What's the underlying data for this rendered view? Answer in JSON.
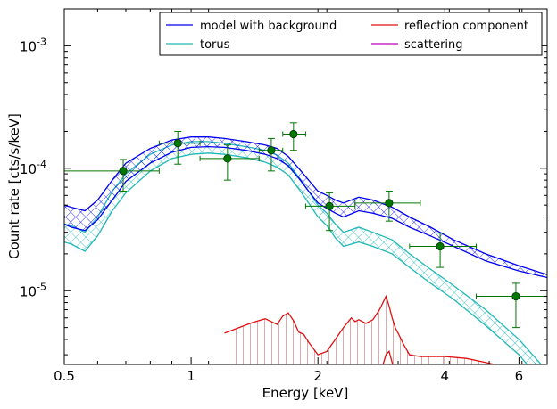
{
  "chart_data": {
    "type": "line",
    "xlabel": "Energy [keV]",
    "ylabel": "Count rate [cts/s/keV]",
    "xscale": "log",
    "yscale": "log",
    "xlim": [
      0.5,
      7.0
    ],
    "ylim": [
      2.5e-06,
      0.002
    ],
    "x_ticks": [
      {
        "value": 0.5,
        "label": "0.5"
      },
      {
        "value": 1,
        "label": "1"
      },
      {
        "value": 2,
        "label": "2"
      },
      {
        "value": 4,
        "label": "4"
      },
      {
        "value": 6,
        "label": "6"
      }
    ],
    "y_ticks": [
      {
        "value": 1e-05,
        "base": "10",
        "exp": "-5"
      },
      {
        "value": 0.0001,
        "base": "10",
        "exp": "-4"
      },
      {
        "value": 0.001,
        "base": "10",
        "exp": "-3"
      }
    ],
    "grid": false,
    "legend_position": "top-right",
    "legend": [
      {
        "name": "model with background",
        "color": "#0000ee"
      },
      {
        "name": "reflection component",
        "color": "#e01010"
      },
      {
        "name": "torus",
        "color": "#20b8b8"
      },
      {
        "name": "scattering",
        "color": "#bb00bb"
      }
    ],
    "series": [
      {
        "name": "model with background",
        "color": "#0000ee",
        "style": "hatched-band",
        "x": [
          0.5,
          0.52,
          0.56,
          0.6,
          0.65,
          0.7,
          0.8,
          0.9,
          1.0,
          1.1,
          1.2,
          1.35,
          1.5,
          1.6,
          1.7,
          1.8,
          1.9,
          2.0,
          2.1,
          2.2,
          2.3,
          2.5,
          2.7,
          3.0,
          3.3,
          3.7,
          4.2,
          5.0,
          6.0,
          7.0
        ],
        "upper": [
          5e-05,
          4.8e-05,
          4.5e-05,
          5.5e-05,
          8e-05,
          0.00011,
          0.000145,
          0.00017,
          0.00018,
          0.00018,
          0.000175,
          0.000165,
          0.000155,
          0.000145,
          0.000125,
          0.0001,
          8e-05,
          6.5e-05,
          6e-05,
          5.5e-05,
          5.2e-05,
          5.8e-05,
          5.5e-05,
          4.8e-05,
          4e-05,
          3.3e-05,
          2.6e-05,
          2e-05,
          1.6e-05,
          1.35e-05
        ],
        "lower": [
          3.5e-05,
          3.3e-05,
          3.1e-05,
          3.8e-05,
          5.5e-05,
          7.8e-05,
          0.00011,
          0.000135,
          0.000148,
          0.00015,
          0.000148,
          0.00014,
          0.00013,
          0.00012,
          0.000105,
          8.3e-05,
          6.5e-05,
          5.2e-05,
          4.7e-05,
          4.3e-05,
          4e-05,
          4.5e-05,
          4.3e-05,
          3.9e-05,
          3.3e-05,
          2.8e-05,
          2.3e-05,
          1.75e-05,
          1.45e-05,
          1.28e-05
        ]
      },
      {
        "name": "torus",
        "color": "#20b8b8",
        "style": "hatched-band",
        "x": [
          0.5,
          0.52,
          0.56,
          0.6,
          0.65,
          0.7,
          0.8,
          0.9,
          1.0,
          1.1,
          1.2,
          1.35,
          1.5,
          1.6,
          1.7,
          1.8,
          1.9,
          2.0,
          2.1,
          2.2,
          2.3,
          2.5,
          2.7,
          3.0,
          3.3,
          3.7,
          4.2,
          5.0,
          6.0,
          7.0
        ],
        "upper": [
          3.5e-05,
          3.4e-05,
          3e-05,
          4e-05,
          6.5e-05,
          9e-05,
          0.00013,
          0.000155,
          0.000165,
          0.000165,
          0.00016,
          0.00015,
          0.00014,
          0.000128,
          0.00011,
          8.5e-05,
          6.5e-05,
          5e-05,
          4.3e-05,
          3.5e-05,
          3e-05,
          3.3e-05,
          3e-05,
          2.6e-05,
          2e-05,
          1.5e-05,
          1.1e-05,
          7e-06,
          4e-06,
          2.2e-06
        ],
        "lower": [
          2.5e-05,
          2.4e-05,
          2.1e-05,
          2.8e-05,
          4.5e-05,
          6.3e-05,
          9.5e-05,
          0.00012,
          0.00013,
          0.000133,
          0.00013,
          0.000122,
          0.000112,
          0.000102,
          8.8e-05,
          6.8e-05,
          5.2e-05,
          4e-05,
          3.4e-05,
          2.7e-05,
          2.3e-05,
          2.5e-05,
          2.3e-05,
          2e-05,
          1.55e-05,
          1.15e-05,
          8.5e-06,
          5.2e-06,
          3e-06,
          1.6e-06
        ]
      },
      {
        "name": "reflection component",
        "color": "#e01010",
        "style": "hatched-band",
        "x": [
          1.2,
          1.3,
          1.4,
          1.5,
          1.55,
          1.6,
          1.65,
          1.7,
          1.75,
          1.8,
          1.85,
          1.9,
          2.0,
          2.1,
          2.2,
          2.3,
          2.4,
          2.45,
          2.5,
          2.6,
          2.7,
          2.8,
          2.9,
          2.95,
          3.0,
          3.05,
          3.1,
          3.2,
          3.3,
          3.5,
          4.0,
          4.5,
          5.0,
          5.5
        ],
        "upper": [
          4.5e-06,
          5e-06,
          5.5e-06,
          5.9e-06,
          5.6e-06,
          5.3e-06,
          6.2e-06,
          6.6e-06,
          5.7e-06,
          4.6e-06,
          4.4e-06,
          3.8e-06,
          3e-06,
          3.2e-06,
          4e-06,
          5e-06,
          6e-06,
          5.6e-06,
          5.8e-06,
          5.4e-06,
          5.8e-06,
          7e-06,
          9e-06,
          7.5e-06,
          6e-06,
          5e-06,
          4.5e-06,
          3.6e-06,
          3e-06,
          2.9e-06,
          2.9e-06,
          2.8e-06,
          2.6e-06,
          2.4e-06
        ],
        "lower": [
          2e-06,
          2e-06,
          2e-06,
          2e-06,
          2e-06,
          2e-06,
          2e-06,
          2e-06,
          2e-06,
          2e-06,
          2e-06,
          2e-06,
          2e-06,
          2e-06,
          2e-06,
          2e-06,
          2e-06,
          2e-06,
          2e-06,
          2e-06,
          2e-06,
          2e-06,
          3e-06,
          3.2e-06,
          2.6e-06,
          2e-06,
          2e-06,
          2e-06,
          2e-06,
          2e-06,
          2e-06,
          2e-06,
          2e-06,
          2e-06
        ]
      }
    ],
    "data_points": {
      "name": "data",
      "color": "#007700",
      "points": [
        {
          "x": 0.69,
          "y": 9.5e-05,
          "xlo": 0.5,
          "xhi": 0.84,
          "ylo": 6.5e-05,
          "yhi": 0.000118
        },
        {
          "x": 0.93,
          "y": 0.00016,
          "xlo": 0.84,
          "xhi": 1.05,
          "ylo": 0.000108,
          "yhi": 0.0002
        },
        {
          "x": 1.22,
          "y": 0.00012,
          "xlo": 1.05,
          "xhi": 1.45,
          "ylo": 8e-05,
          "yhi": 0.000155
        },
        {
          "x": 1.55,
          "y": 0.00014,
          "xlo": 1.45,
          "xhi": 1.65,
          "ylo": 9.5e-05,
          "yhi": 0.000175
        },
        {
          "x": 1.75,
          "y": 0.00019,
          "xlo": 1.65,
          "xhi": 1.87,
          "ylo": 0.00014,
          "yhi": 0.000235
        },
        {
          "x": 2.13,
          "y": 4.9e-05,
          "xlo": 1.87,
          "xhi": 2.45,
          "ylo": 3.1e-05,
          "yhi": 6.3e-05
        },
        {
          "x": 2.95,
          "y": 5.2e-05,
          "xlo": 2.45,
          "xhi": 3.5,
          "ylo": 3.7e-05,
          "yhi": 6.5e-05
        },
        {
          "x": 3.9,
          "y": 2.3e-05,
          "xlo": 3.3,
          "xhi": 4.75,
          "ylo": 1.55e-05,
          "yhi": 2.95e-05
        },
        {
          "x": 5.9,
          "y": 9e-06,
          "xlo": 4.75,
          "xhi": 7.0,
          "ylo": 5e-06,
          "yhi": 1.15e-05
        }
      ]
    }
  }
}
